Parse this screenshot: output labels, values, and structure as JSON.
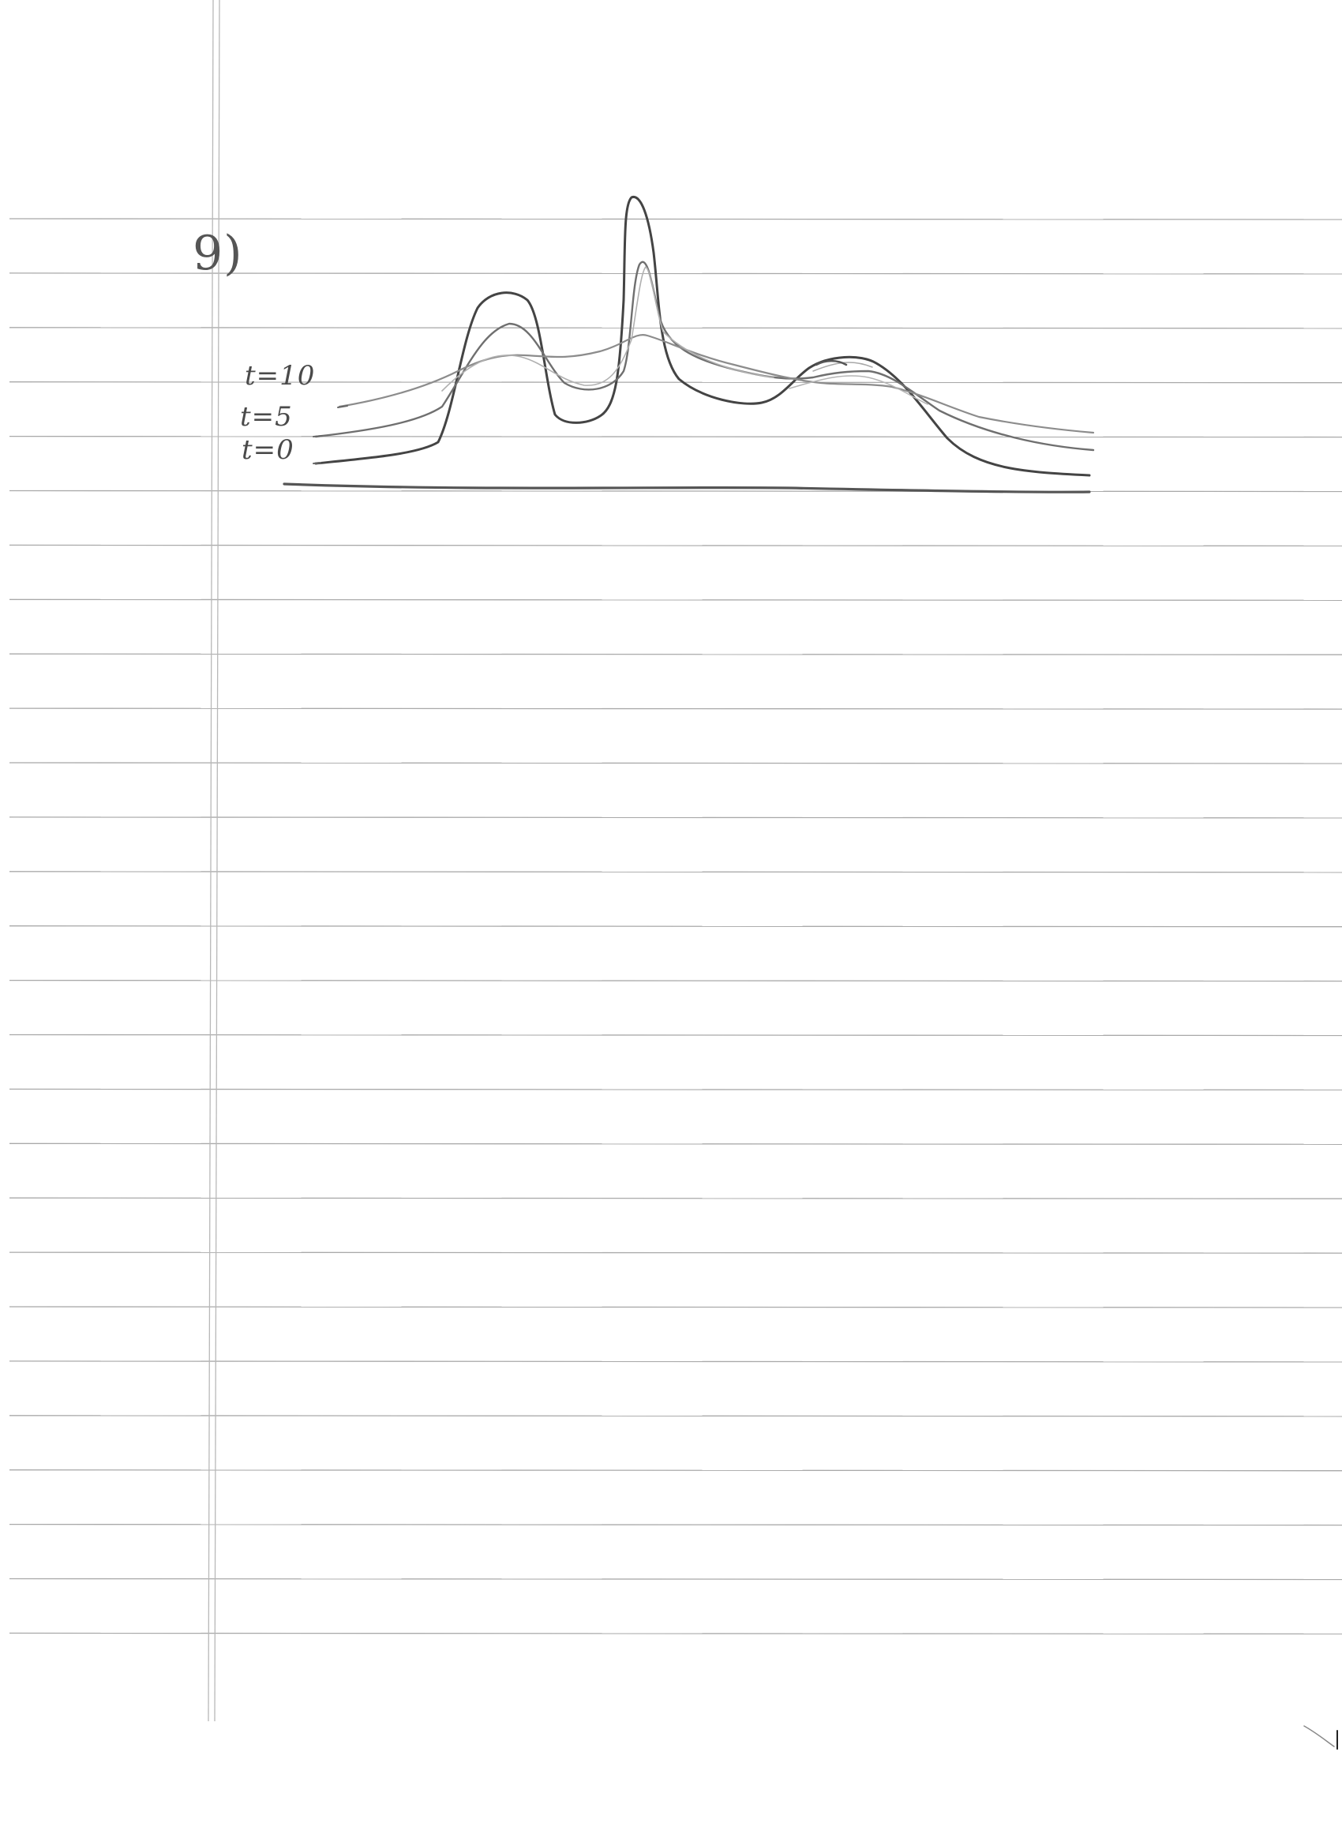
{
  "document": {
    "problem_number": "9)",
    "curve_labels": [
      {
        "id": "t10",
        "text": "t=10"
      },
      {
        "id": "t5",
        "text": "t=5"
      },
      {
        "id": "t0",
        "text": "t=0"
      }
    ]
  },
  "colors": {
    "paper": "#ffffff",
    "ruling": "#a9a9a9",
    "pencil_dark": "#444444",
    "pencil_medium": "#6f6f6f",
    "pencil_light": "#9a9a9a"
  }
}
